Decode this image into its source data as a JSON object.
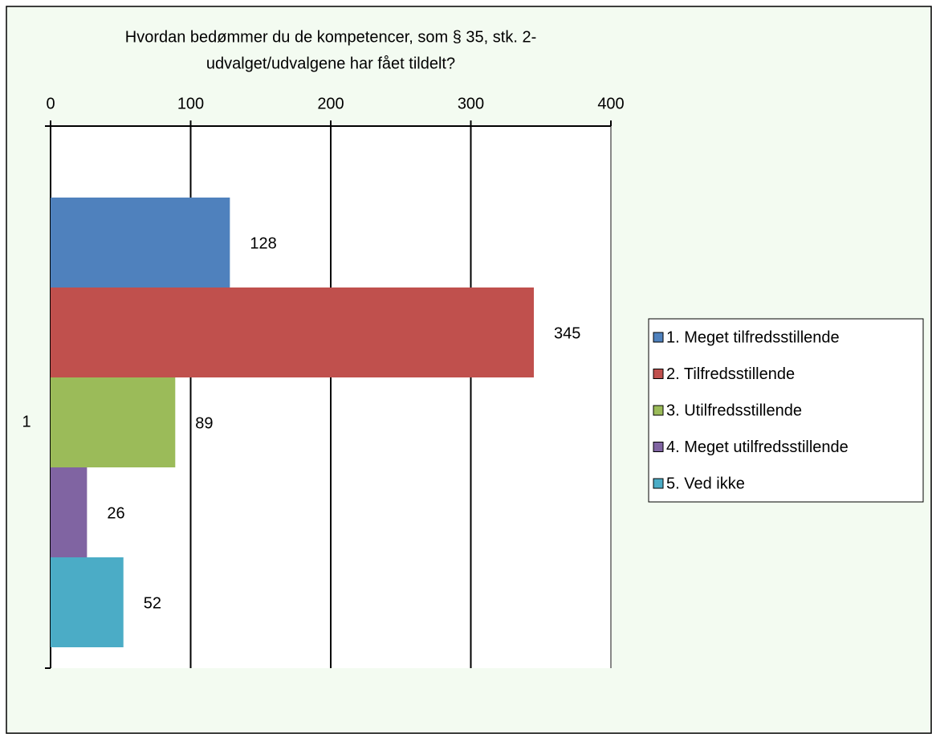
{
  "chart_data": {
    "type": "bar",
    "orientation": "horizontal",
    "title": [
      "Hvordan bedømmer du de kompetencer, som § 35, stk. 2-",
      "udvalget/udvalgene har fået tildelt?"
    ],
    "categories": [
      "1"
    ],
    "series": [
      {
        "name": "1. Meget tilfredsstillende",
        "color": "#4f81bd",
        "values": [
          128
        ]
      },
      {
        "name": "2. Tilfredsstillende",
        "color": "#c0504d",
        "values": [
          345
        ]
      },
      {
        "name": "3. Utilfredsstillende",
        "color": "#9bbb59",
        "values": [
          89
        ]
      },
      {
        "name": "4. Meget utilfredsstillende",
        "color": "#8064a2",
        "values": [
          26
        ]
      },
      {
        "name": "5. Ved ikke",
        "color": "#4bacc6",
        "values": [
          52
        ]
      }
    ],
    "xlim": [
      0,
      400
    ],
    "xticks": [
      0,
      100,
      200,
      300,
      400
    ],
    "grid": true,
    "legend": "right"
  }
}
